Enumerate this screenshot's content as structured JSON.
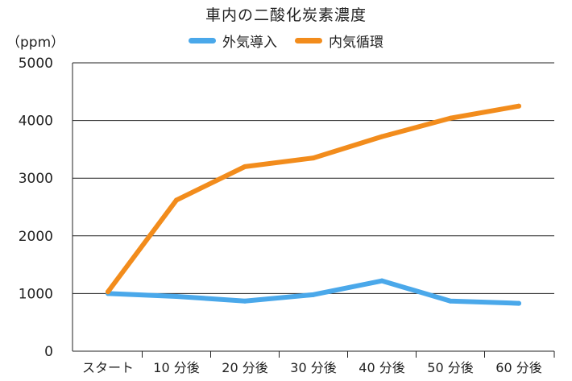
{
  "chart_data": {
    "type": "line",
    "title": "車内の二酸化炭素濃度",
    "xlabel": "",
    "ylabel": "（ppm）",
    "ylim": [
      0,
      5000
    ],
    "yticks": [
      0,
      1000,
      2000,
      3000,
      4000,
      5000
    ],
    "categories": [
      "スタート",
      "10 分後",
      "20 分後",
      "30 分後",
      "40 分後",
      "50 分後",
      "60 分後"
    ],
    "grid": "horizontal",
    "legend_position": "top-center",
    "series": [
      {
        "name": "外気導入",
        "color": "#4aa8ea",
        "values": [
          1000,
          950,
          870,
          980,
          1220,
          870,
          830
        ]
      },
      {
        "name": "内気循環",
        "color": "#f28c1c",
        "values": [
          1030,
          2620,
          3200,
          3350,
          3720,
          4040,
          4250
        ]
      }
    ]
  }
}
